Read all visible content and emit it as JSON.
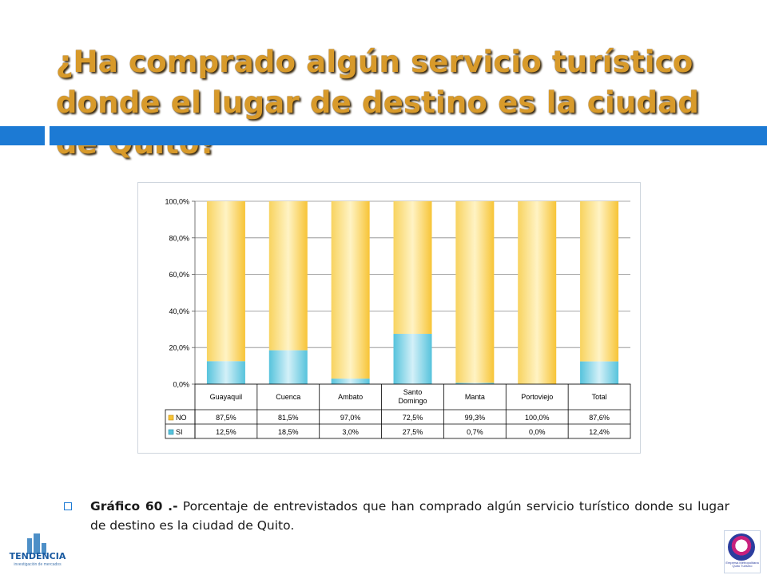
{
  "slide": {
    "title": "¿Ha comprado algún servicio turístico donde el lugar de destino es la ciudad de Quito?",
    "caption_bold": "Gráfico 60 .-",
    "caption_text": " Porcentaje de entrevistados que han comprado algún servicio turístico donde su lugar de destino es la ciudad de Quito."
  },
  "logos": {
    "left_name": "TENDENCIA",
    "left_sub": "investigación de mercados",
    "right_text": "Empresa Metropolitana Quito Turismo"
  },
  "colors": {
    "title": "#d89a2a",
    "accent_bar": "#1c7ad4",
    "no_fill": "#f7c436",
    "si_fill": "#56c3dc"
  },
  "chart_data": {
    "type": "bar",
    "stacked": true,
    "categories": [
      "Guayaquil",
      "Cuenca",
      "Ambato",
      "Santo Domingo",
      "Manta",
      "Portoviejo",
      "Total"
    ],
    "category_lines": [
      [
        "Guayaquil"
      ],
      [
        "Cuenca"
      ],
      [
        "Ambato"
      ],
      [
        "Santo",
        "Domingo"
      ],
      [
        "Manta"
      ],
      [
        "Portoviejo"
      ],
      [
        "Total"
      ]
    ],
    "series": [
      {
        "name": "SI",
        "values": [
          12.5,
          18.5,
          3.0,
          27.5,
          0.7,
          0.0,
          12.4
        ],
        "labels": [
          "12,5%",
          "18,5%",
          "3,0%",
          "27,5%",
          "0,7%",
          "0,0%",
          "12,4%"
        ]
      },
      {
        "name": "NO",
        "values": [
          87.5,
          81.5,
          97.0,
          72.5,
          99.3,
          100.0,
          87.6
        ],
        "labels": [
          "87,5%",
          "81,5%",
          "97,0%",
          "72,5%",
          "99,3%",
          "100,0%",
          "87,6%"
        ]
      }
    ],
    "yticks": [
      "0,0%",
      "20,0%",
      "40,0%",
      "60,0%",
      "80,0%",
      "100,0%"
    ],
    "ylim": [
      0,
      100
    ],
    "grid": true,
    "legend": "data-table"
  }
}
